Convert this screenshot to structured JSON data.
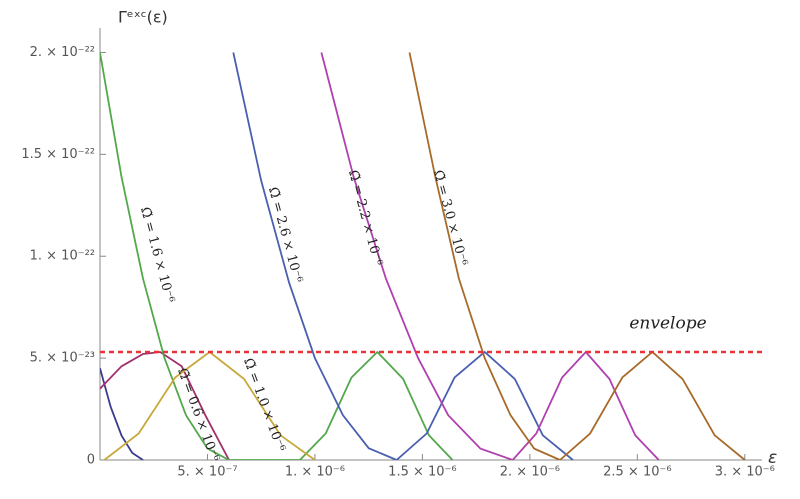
{
  "chart_data": {
    "type": "line",
    "ylabel": "Γᵉˣᶜ(ε)",
    "xlabel": "ε",
    "xlim": [
      0,
      3.08e-06
    ],
    "ylim": [
      0,
      2.12e-22
    ],
    "xticks": [
      {
        "value": 5e-07,
        "label": "5. × 10⁻⁷"
      },
      {
        "value": 1e-06,
        "label": "1. × 10⁻⁶"
      },
      {
        "value": 1.5e-06,
        "label": "1.5 × 10⁻⁶"
      },
      {
        "value": 2e-06,
        "label": "2. × 10⁻⁶"
      },
      {
        "value": 2.5e-06,
        "label": "2.5 × 10⁻⁶"
      },
      {
        "value": 3e-06,
        "label": "3. × 10⁻⁶"
      }
    ],
    "yticks": [
      0,
      {
        "value": 5e-23,
        "label": "5. × 10⁻²³"
      },
      {
        "value": 1e-22,
        "label": "1. × 10⁻²²"
      },
      {
        "value": 1.5e-22,
        "label": "1.5 × 10⁻²²"
      },
      {
        "value": 2e-22,
        "label": "2. × 10⁻²²"
      }
    ],
    "envelope": {
      "label": "envelope",
      "value": 5.3e-23,
      "color": "#e8333a"
    },
    "series": [
      {
        "color": "#3b3b8f",
        "x": [
          0,
          5e-08,
          1e-07,
          1.5e-07,
          2e-07
        ],
        "values": [
          4.5e-23,
          2.6e-23,
          1.2e-23,
          3.5e-24,
          0
        ]
      },
      {
        "name": "Ω̃ = 0.6 × 10⁻⁶",
        "color": "#a0306a",
        "x": [
          0,
          1e-07,
          2e-07,
          2.8e-07,
          3.8e-07,
          4.9e-07,
          6e-07
        ],
        "values": [
          3.5e-23,
          4.6e-23,
          5.2e-23,
          5.3e-23,
          4.6e-23,
          2.2e-23,
          0
        ]
      },
      {
        "name": "Ω̃ = 1.6 × 10⁻⁶",
        "color": "#52a84a",
        "x": [
          0,
          1e-07,
          2e-07,
          3e-07,
          4e-07,
          5e-07,
          6e-07,
          9.3e-07,
          1.05e-06,
          1.17e-06,
          1.29e-06,
          1.41e-06,
          1.53e-06,
          1.64e-06
        ],
        "values": [
          2e-22,
          1.39e-22,
          8.9e-23,
          5e-23,
          2.2e-23,
          5.6e-24,
          0,
          0,
          1.3e-23,
          4.05e-23,
          5.3e-23,
          3.98e-23,
          1.21e-23,
          0
        ]
      },
      {
        "name": "Ω̃ = 1.0 × 10⁻⁶",
        "color": "#c8a83a",
        "x": [
          2e-08,
          1.8e-07,
          3.5e-07,
          5.1e-07,
          6.7e-07,
          8.4e-07,
          1e-06
        ],
        "values": [
          0,
          1.3e-23,
          4.05e-23,
          5.3e-23,
          3.98e-23,
          1.21e-23,
          0
        ]
      },
      {
        "name": "Ω̃ = 2.6 × 10⁻⁶",
        "color": "#4a5fb0",
        "x": [
          6.2e-07,
          7.5e-07,
          8.8e-07,
          1e-06,
          1.13e-06,
          1.25e-06,
          1.38e-06,
          1.52e-06,
          1.65e-06,
          1.79e-06,
          1.93e-06,
          2.06e-06,
          2.2e-06
        ],
        "values": [
          2e-22,
          1.37e-22,
          8.7e-23,
          5e-23,
          2.2e-23,
          5.8e-24,
          0,
          1.3e-23,
          4.05e-23,
          5.3e-23,
          3.98e-23,
          1.21e-23,
          0
        ]
      },
      {
        "name": "Ω̃ = 2.2 × 10⁻⁶",
        "color": "#b040b0",
        "x": [
          1.03e-06,
          1.18e-06,
          1.33e-06,
          1.48e-06,
          1.62e-06,
          1.77e-06,
          1.92e-06,
          2.03e-06,
          2.15e-06,
          2.26e-06,
          2.37e-06,
          2.49e-06,
          2.6e-06
        ],
        "values": [
          2e-22,
          1.39e-22,
          8.9e-23,
          5e-23,
          2.2e-23,
          5.6e-24,
          0,
          1.3e-23,
          4.05e-23,
          5.3e-23,
          3.98e-23,
          1.21e-23,
          0
        ]
      },
      {
        "name": "Ω̃ = 3.0 × 10⁻⁶",
        "color": "#a86a28",
        "x": [
          1.44e-06,
          1.56e-06,
          1.67e-06,
          1.79e-06,
          1.91e-06,
          2.02e-06,
          2.14e-06,
          2.28e-06,
          2.43e-06,
          2.57e-06,
          2.71e-06,
          2.86e-06,
          3e-06
        ],
        "values": [
          2e-22,
          1.39e-22,
          8.9e-23,
          5e-23,
          2.2e-23,
          5.6e-24,
          0,
          1.3e-23,
          4.05e-23,
          5.3e-23,
          3.98e-23,
          1.21e-23,
          0
        ]
      }
    ]
  }
}
